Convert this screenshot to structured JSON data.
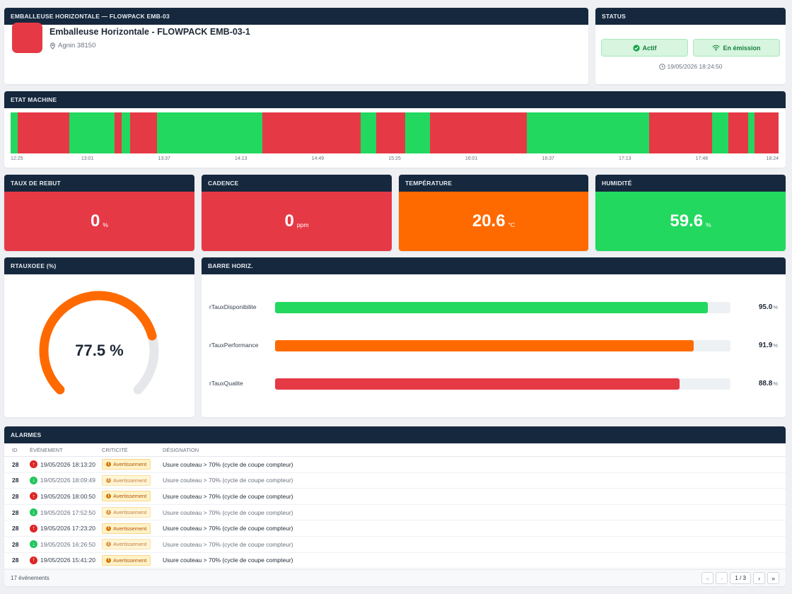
{
  "colors": {
    "green": "#22d85f",
    "red": "#e63946",
    "orange": "#ff6a00",
    "navy": "#16283d",
    "gauge_track": "#e5e7ea"
  },
  "header": {
    "title": "EMBALLEUSE HORIZONTALE — FLOWPACK EMB-03",
    "machine_name": "Emballeuse Horizontale - FLOWPACK EMB-03-1",
    "location": "Agnin 38150",
    "location_icon": "map-pin-icon"
  },
  "status": {
    "title": "STATUS",
    "active_label": "Actif",
    "active_icon": "check-circle-icon",
    "emission_label": "En émission",
    "emission_icon": "wifi-icon",
    "timestamp": "19/05/2026 18:24:50",
    "timestamp_icon": "clock-icon"
  },
  "timeline": {
    "title": "ETAT MACHINE",
    "segments": [
      {
        "state": "on",
        "fraction": 0.009
      },
      {
        "state": "off",
        "fraction": 0.067
      },
      {
        "state": "on",
        "fraction": 0.059
      },
      {
        "state": "off",
        "fraction": 0.01
      },
      {
        "state": "on",
        "fraction": 0.011
      },
      {
        "state": "off",
        "fraction": 0.035
      },
      {
        "state": "on",
        "fraction": 0.137
      },
      {
        "state": "off",
        "fraction": 0.128
      },
      {
        "state": "on",
        "fraction": 0.02
      },
      {
        "state": "off",
        "fraction": 0.038
      },
      {
        "state": "on",
        "fraction": 0.032
      },
      {
        "state": "off",
        "fraction": 0.126
      },
      {
        "state": "on",
        "fraction": 0.159
      },
      {
        "state": "off",
        "fraction": 0.082
      },
      {
        "state": "on",
        "fraction": 0.022
      },
      {
        "state": "off",
        "fraction": 0.025
      },
      {
        "state": "on",
        "fraction": 0.009
      },
      {
        "state": "off",
        "fraction": 0.031
      }
    ],
    "ticks": [
      "12:25",
      "13:01",
      "13:37",
      "14:13",
      "14:49",
      "15:25",
      "16:01",
      "16:37",
      "17:13",
      "17:48",
      "18:24"
    ]
  },
  "kpis": [
    {
      "title": "TAUX DE REBUT",
      "value": "0",
      "unit": "%",
      "color": "#e63946"
    },
    {
      "title": "CADENCE",
      "value": "0",
      "unit": "ppm",
      "color": "#e63946"
    },
    {
      "title": "TEMPÉRATURE",
      "value": "20.6",
      "unit": "°C",
      "color": "#ff6a00"
    },
    {
      "title": "HUMIDITÉ",
      "value": "59.6",
      "unit": "%",
      "color": "#22d85f"
    }
  ],
  "gauge": {
    "title": "RTAUXOEE (%)",
    "value": 77.5,
    "display": "77.5 %",
    "color": "#ff6a00"
  },
  "bars": {
    "title": "BARRE HORIZ.",
    "items": [
      {
        "label": "rTauxDisponibilite",
        "value": 95.0,
        "display": "95.0",
        "unit": "%",
        "color": "#22d85f"
      },
      {
        "label": "rTauxPerformance",
        "value": 91.9,
        "display": "91.9",
        "unit": "%",
        "color": "#ff6a00"
      },
      {
        "label": "rTauxQualite",
        "value": 88.8,
        "display": "88.8",
        "unit": "%",
        "color": "#e63946"
      }
    ]
  },
  "alarms": {
    "title": "ALARMES",
    "headers": {
      "id": "ID",
      "event": "ÉVÉNEMENT",
      "crit": "CRITICITÉ",
      "designation": "DÉSIGNATION"
    },
    "rows": [
      {
        "id": "28",
        "dir": "up",
        "time": "19/05/2026 18:13:20",
        "crit": "Avertissement",
        "designation": "Usure couteau > 70% (cycle de coupe compteur)"
      },
      {
        "id": "28",
        "dir": "down",
        "time": "19/05/2026 18:09:49",
        "crit": "Avertissement",
        "designation": "Usure couteau > 70% (cycle de coupe compteur)"
      },
      {
        "id": "28",
        "dir": "up",
        "time": "19/05/2026 18:00:50",
        "crit": "Avertissement",
        "designation": "Usure couteau > 70% (cycle de coupe compteur)"
      },
      {
        "id": "28",
        "dir": "down",
        "time": "19/05/2026 17:52:50",
        "crit": "Avertissement",
        "designation": "Usure couteau > 70% (cycle de coupe compteur)"
      },
      {
        "id": "28",
        "dir": "up",
        "time": "19/05/2026 17:23:20",
        "crit": "Avertissement",
        "designation": "Usure couteau > 70% (cycle de coupe compteur)"
      },
      {
        "id": "28",
        "dir": "down",
        "time": "19/05/2026 16:26:50",
        "crit": "Avertissement",
        "designation": "Usure couteau > 70% (cycle de coupe compteur)"
      },
      {
        "id": "28",
        "dir": "up",
        "time": "19/05/2026 15:41:20",
        "crit": "Avertissement",
        "designation": "Usure couteau > 70% (cycle de coupe compteur)"
      }
    ],
    "footer_count": "17 événements",
    "page": "1 / 3"
  }
}
